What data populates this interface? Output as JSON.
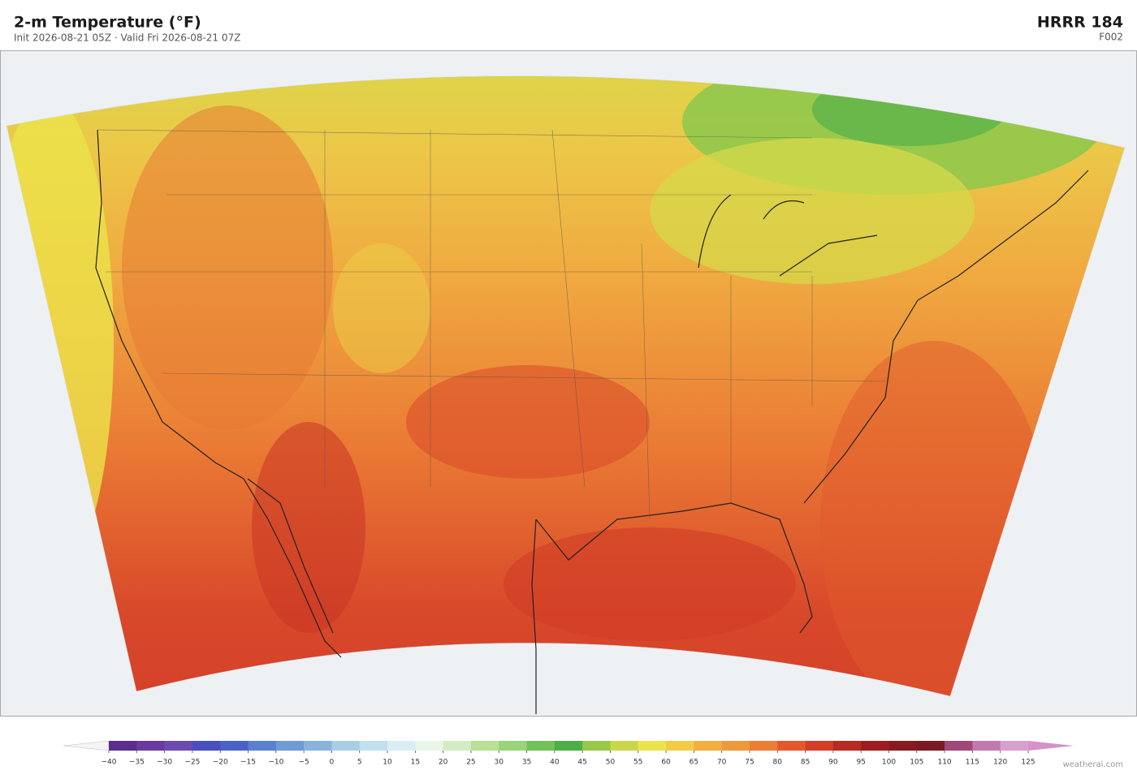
{
  "header": {
    "title": "2-m Temperature  (°F)",
    "subtitle": "Init 2026-08-21 05Z  ·  Valid Fri 2026-08-21 07Z",
    "model": "HRRR  184",
    "forecast": "F002"
  },
  "colorbar": {
    "ticks": [
      {
        "value": -40,
        "label": "−40"
      },
      {
        "value": -35,
        "label": "−35"
      },
      {
        "value": -30,
        "label": "−30"
      },
      {
        "value": -25,
        "label": "−25"
      },
      {
        "value": -20,
        "label": "−20"
      },
      {
        "value": -15,
        "label": "−15"
      },
      {
        "value": -10,
        "label": "−10"
      },
      {
        "value": -5,
        "label": "−5"
      },
      0,
      5,
      10,
      15,
      20,
      25,
      30,
      35,
      40,
      45,
      50,
      55,
      60,
      65,
      70,
      75,
      80,
      85,
      90,
      95,
      100,
      105,
      110,
      115,
      120,
      125
    ],
    "colors": [
      "#5a2d8f",
      "#6a3a9e",
      "#6c4bb0",
      "#4a4fc0",
      "#4a62c8",
      "#5a80d0",
      "#6f9ad6",
      "#8ab4dc",
      "#a8cfe6",
      "#c0e0ee",
      "#d8eef2",
      "#e8f6e8",
      "#d4ecc4",
      "#b8e098",
      "#98d47a",
      "#72c25a",
      "#4caf48",
      "#98c84a",
      "#c8d84a",
      "#ece44a",
      "#f2cc48",
      "#f2b040",
      "#ee9a3c",
      "#ea7e34",
      "#e4582c",
      "#d43e26",
      "#b82a24",
      "#9c1e22",
      "#861a1e",
      "#7a1a22",
      "#a04878",
      "#c07ab0",
      "#d8a0cc"
    ],
    "under_color": "#f4f4f4",
    "over_color": "#d890c8"
  },
  "footer": {
    "credit": "weatherai.com"
  }
}
